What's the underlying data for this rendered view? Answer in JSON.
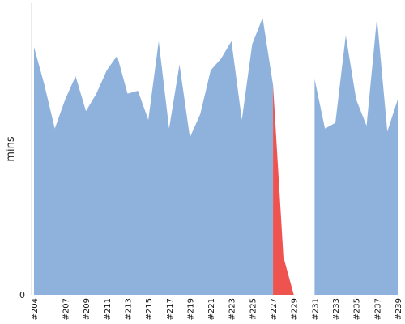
{
  "chart_data": {
    "type": "area",
    "ylabel": "mins",
    "y_tick_labels": [
      "0"
    ],
    "ylim": [
      0,
      100
    ],
    "x_tick_labels": [
      "#204",
      "#207",
      "#209",
      "#211",
      "#213",
      "#215",
      "#217",
      "#219",
      "#221",
      "#223",
      "#225",
      "#227",
      "#229",
      "#231",
      "#233",
      "#235",
      "#237",
      "#239"
    ],
    "x": [
      204,
      205,
      206,
      207,
      208,
      209,
      210,
      211,
      212,
      213,
      214,
      215,
      216,
      217,
      218,
      219,
      220,
      221,
      222,
      223,
      224,
      225,
      226,
      227,
      228,
      229,
      230,
      231,
      232,
      233,
      234,
      235,
      236,
      237,
      238,
      239
    ],
    "series": [
      {
        "status": "success",
        "color": "#8fb2dc",
        "values": [
          85,
          72,
          57,
          67,
          75,
          63,
          69,
          77,
          82,
          69,
          70,
          60,
          87,
          57,
          79,
          54,
          62,
          77,
          81,
          87,
          60,
          86,
          95,
          72,
          null,
          null,
          null,
          74,
          57,
          59,
          89,
          67,
          58,
          95,
          56,
          67
        ]
      },
      {
        "status": "failed",
        "color": "#ef5350",
        "values": [
          null,
          null,
          null,
          null,
          null,
          null,
          null,
          null,
          null,
          null,
          null,
          null,
          null,
          null,
          null,
          null,
          null,
          null,
          null,
          null,
          null,
          null,
          null,
          72,
          13,
          0,
          null,
          null,
          null,
          null,
          null,
          null,
          null,
          null,
          null,
          null
        ]
      },
      {
        "status": "aborted",
        "color": "#c0c0c0",
        "values": [
          null,
          null,
          null,
          null,
          null,
          null,
          null,
          null,
          null,
          null,
          null,
          null,
          null,
          null,
          null,
          null,
          null,
          null,
          null,
          null,
          null,
          null,
          null,
          null,
          null,
          0,
          null,
          74,
          null,
          null,
          null,
          null,
          null,
          null,
          null,
          null
        ]
      }
    ],
    "grid": false,
    "legend": "none"
  }
}
